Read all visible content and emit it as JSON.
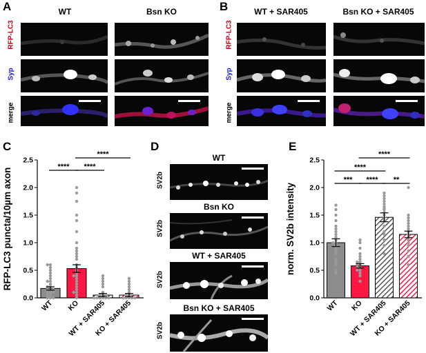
{
  "panels": {
    "A": {
      "letter": "A",
      "columns": [
        "WT",
        "Bsn KO"
      ],
      "rows": [
        {
          "label": "RFP-LC3",
          "color": "#d0021b"
        },
        {
          "label": "Syp",
          "color": "#1a1ad8"
        },
        {
          "label": "merge",
          "color": "#000000"
        }
      ]
    },
    "B": {
      "letter": "B",
      "columns": [
        "WT + SAR405",
        "Bsn KO + SAR405"
      ],
      "rows": [
        {
          "label": "RFP-LC3",
          "color": "#d0021b"
        },
        {
          "label": "Syp",
          "color": "#1a1ad8"
        },
        {
          "label": "merge",
          "color": "#000000"
        }
      ]
    },
    "C": {
      "letter": "C"
    },
    "D": {
      "letter": "D",
      "row_label": "SV2b",
      "images": [
        "WT",
        "Bsn KO",
        "WT + SAR405",
        "Bsn KO + SAR405"
      ]
    },
    "E": {
      "letter": "E"
    }
  },
  "chart_data": [
    {
      "panel": "C",
      "type": "bar",
      "ylabel": "RFP-LC3 puncta/10µm axon",
      "ylim": [
        0,
        2.5
      ],
      "yticks": [
        "0.0",
        "0.5",
        "1.0",
        "1.5",
        "2.0",
        "2.5"
      ],
      "categories": [
        "WT",
        "KO",
        "WT + SAR405",
        "KO + SAR405"
      ],
      "values": [
        0.17,
        0.53,
        0.05,
        0.05
      ],
      "errors": [
        0.03,
        0.07,
        0.03,
        0.03
      ],
      "bar_fills": [
        "#8c8c8c",
        "#ff1744",
        "hatch-gray",
        "hatch-red"
      ],
      "points": [
        [
          0.0,
          0.0,
          0.0,
          0.05,
          0.05,
          0.1,
          0.1,
          0.1,
          0.15,
          0.15,
          0.15,
          0.2,
          0.2,
          0.25,
          0.3,
          0.3,
          0.35,
          0.4,
          0.45,
          0.5,
          0.55,
          0.6,
          0.6
        ],
        [
          0.0,
          0.05,
          0.1,
          0.1,
          0.15,
          0.2,
          0.25,
          0.3,
          0.35,
          0.4,
          0.4,
          0.45,
          0.5,
          0.55,
          0.6,
          0.7,
          0.75,
          0.8,
          0.85,
          0.9,
          1.0,
          1.2,
          1.4,
          1.5,
          1.75,
          1.9,
          2.0
        ],
        [
          0.0,
          0.0,
          0.0,
          0.0,
          0.0,
          0.0,
          0.05,
          0.05,
          0.1,
          0.2,
          0.25,
          0.3,
          0.35,
          0.4
        ],
        [
          0.0,
          0.0,
          0.0,
          0.0,
          0.0,
          0.05,
          0.05,
          0.1,
          0.15,
          0.2,
          0.25,
          0.3,
          0.35
        ]
      ],
      "significance": [
        {
          "from": 0,
          "to": 1,
          "label": "****"
        },
        {
          "from": 1,
          "to": 2,
          "label": "****"
        },
        {
          "from": 1,
          "to": 3,
          "label": "****"
        }
      ]
    },
    {
      "panel": "E",
      "type": "bar",
      "ylabel": "norm. SV2b intensity",
      "ylim": [
        0,
        2.5
      ],
      "yticks": [
        "0.0",
        "0.5",
        "1.0",
        "1.5",
        "2.0",
        "2.5"
      ],
      "categories": [
        "WT",
        "KO",
        "WT + SAR405",
        "KO + SAR405"
      ],
      "values": [
        1.0,
        0.58,
        1.46,
        1.15
      ],
      "errors": [
        0.07,
        0.04,
        0.08,
        0.06
      ],
      "bar_fills": [
        "#8c8c8c",
        "#ff1744",
        "hatch-gray",
        "hatch-red"
      ],
      "points": [
        [
          0.45,
          0.5,
          0.6,
          0.65,
          0.7,
          0.8,
          0.85,
          0.9,
          0.95,
          1.0,
          1.0,
          1.05,
          1.1,
          1.15,
          1.2,
          1.25,
          1.3,
          1.4,
          1.5,
          1.6,
          1.68
        ],
        [
          0.3,
          0.4,
          0.45,
          0.5,
          0.5,
          0.55,
          0.55,
          0.6,
          0.6,
          0.65,
          0.65,
          0.7,
          0.75,
          0.8,
          0.9,
          1.0,
          1.05
        ],
        [
          0.8,
          0.95,
          1.05,
          1.15,
          1.2,
          1.3,
          1.4,
          1.45,
          1.5,
          1.55,
          1.6,
          1.62,
          1.65,
          1.7,
          1.75,
          1.8,
          1.85,
          1.9
        ],
        [
          0.6,
          0.75,
          0.85,
          0.95,
          1.0,
          1.05,
          1.1,
          1.15,
          1.2,
          1.25,
          1.3,
          1.35,
          1.4,
          1.45,
          1.5,
          2.0
        ]
      ],
      "significance": [
        {
          "from": 0,
          "to": 1,
          "label": "***"
        },
        {
          "from": 1,
          "to": 2,
          "label": "****"
        },
        {
          "from": 0,
          "to": 2,
          "label": "****"
        },
        {
          "from": 2,
          "to": 3,
          "label": "**"
        },
        {
          "from": 1,
          "to": 3,
          "label": "****"
        }
      ]
    }
  ]
}
